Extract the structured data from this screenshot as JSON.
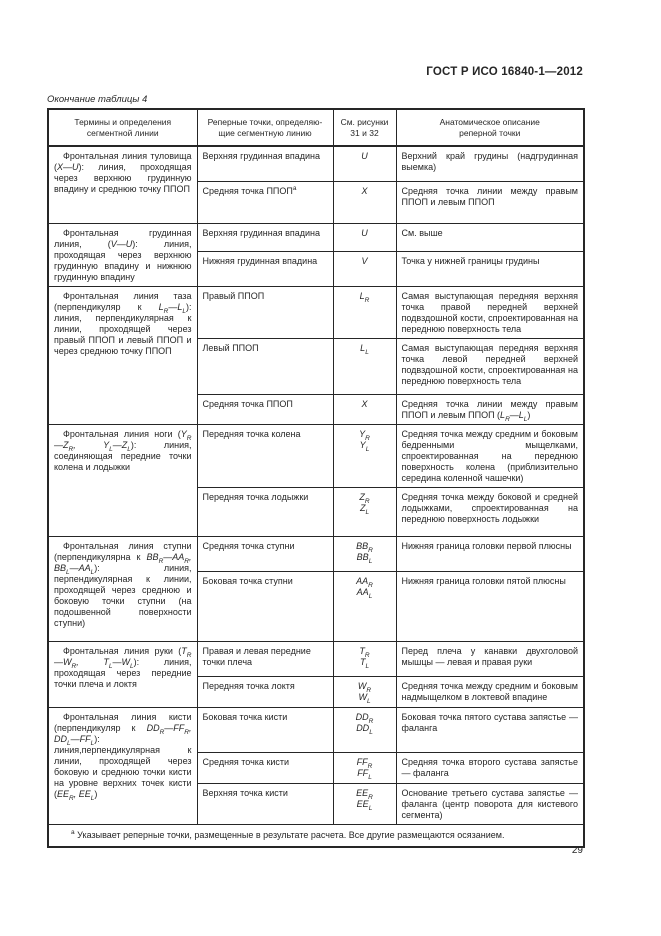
{
  "page": {
    "doc_number": "ГОСТ Р ИСО 16840-1—2012",
    "table_caption": "Окончание таблицы 4",
    "page_number": "29"
  },
  "table": {
    "headers": [
      "Термины и определения\nсегментной линии",
      "Реперные точки, определяю-\nщие сегментную линию",
      "См. рисунки\n31 и 32",
      "Анатомическое описание\nреперной точки"
    ],
    "groups": [
      {
        "term": "Фронтальная линия туловища (*X—U*): линия, проходящая через верхнюю грудинную впадину и среднюю точку ППОП",
        "rows": [
          {
            "point": "Верхняя грудинная впадина",
            "symbol": "*U*",
            "desc": "Верхний край грудины (надгрудинная выемка)"
          },
          {
            "point": "Средняя точка ППОП^a^",
            "symbol": "*X*",
            "desc": "Средняя точка линии между правым ППОП и левым ППОП"
          }
        ]
      },
      {
        "term": "Фронтальная грудинная линия, (*V—U*): линия, проходящая через верхнюю грудинную впадину и нижнюю грудинную впадину",
        "rows": [
          {
            "point": "Верхняя грудинная впадина",
            "symbol": "*U*",
            "desc": "См. выше"
          },
          {
            "point": "Нижняя грудинная впадина",
            "symbol": "*V*",
            "desc": "Точка у нижней границы грудины"
          }
        ]
      },
      {
        "term": "Фронтальная линия таза (перпендикуляр к *L~R~—L~L~*): линия, перпендикулярная к линии, проходящей через правый ППОП и левый ППОП и через среднюю точку ППОП",
        "rows": [
          {
            "point": "Правый ППОП",
            "symbol": "*L~R~*",
            "desc": "Самая выступающая передняя верхняя точка правой передней верхней подвздошной кости, спроектированная на переднюю поверхность тела"
          },
          {
            "point": "Левый ППОП",
            "symbol": "*L~L~*",
            "desc": "Самая выступающая передняя верхняя точка левой передней верхней подвздошной кости, спроектированная на переднюю поверхность тела"
          },
          {
            "point": "Средняя точка ППОП",
            "symbol": "*X*",
            "desc": "Средняя точка линии между правым ППОП и левым ППОП (*L~R~—L~L~*)"
          }
        ]
      },
      {
        "term": "Фронтальная линия ноги (*Y~R~—Z~R~, Y~L~—Z~L~*): линия, соединяющая передние точки колена и лодыжки",
        "rows": [
          {
            "point": "Передняя точка колена",
            "symbol": "*Y~R~*\n*Y~L~*",
            "desc": "Средняя точка между средним и боковым бедренными мыщелками, спроектированная на переднюю поверхность колена (приблизительно середина коленной чашечки)"
          },
          {
            "point": "Передняя точка лодыжки",
            "symbol": "*Z~R~*\n*Z~L~*",
            "desc": "Средняя точка между боковой и средней лодыжками, спроектированная на переднюю поверхность лодыжки"
          }
        ]
      },
      {
        "term": "Фронтальная линия ступни (перпендикулярна к *BB~R~—AA~R~, BB~L~—AA~L~*): линия, перпендикулярная к линии, проходящей через среднюю и боковую точки ступни (на подошвенной поверхности ступни)",
        "rows": [
          {
            "point": "Средняя точка ступни",
            "symbol": "*BB~R~*\n*BB~L~*",
            "desc": "Нижняя граница головки первой плюсны"
          },
          {
            "point": "Боковая точка ступни",
            "symbol": "*AA~R~*\n*AA~L~*",
            "desc": "Нижняя граница головки пятой плюсны"
          }
        ]
      },
      {
        "term": "Фронтальная линия руки (*T~R~—W~R~, T~L~—W~L~*): линия, проходящая через передние точки плеча и локтя",
        "rows": [
          {
            "point": "Правая и левая передние точки плеча",
            "symbol": "*T~R~*\n*T~L~*",
            "desc": "Перед плеча у канавки двухголовой мышцы — левая и правая руки"
          },
          {
            "point": "Передняя точка локтя",
            "symbol": "*W~R~*\n*W~L~*",
            "desc": "Средняя точка между средним и боковым надмыщелком в локтевой впадине"
          }
        ]
      },
      {
        "term": "Фронтальная линия кисти (перпендикуляр к *DD~R~—FF~R~, DD~L~—FF~L~*): линия,перпендикулярная к линии, проходящей через боковую и среднюю точки кисти на уровне верхних точек кисти (*EE~R~, EE~L~*)",
        "rows": [
          {
            "point": "Боковая точка кисти",
            "symbol": "*DD~R~*\n*DD~L~*",
            "desc": "Боковая точка пятого сустава запястье — фаланга"
          },
          {
            "point": "Средняя точка кисти",
            "symbol": "*FF~R~*\n*FF~L~*",
            "desc": "Средняя точка второго сустава запястье — фаланга"
          },
          {
            "point": "Верхняя точка кисти",
            "symbol": "*EE~R~*\n*EE~L~*",
            "desc": "Основание третьего сустава запястье — фаланга (центр поворота для кистевого сегмента)"
          }
        ]
      }
    ],
    "footnote": "^a^ Указывает реперные точки, размещенные в результате расчета. Все другие размещаются осязанием."
  }
}
